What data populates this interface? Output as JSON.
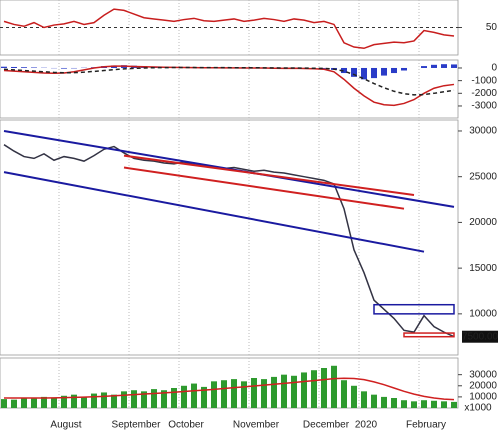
{
  "chart_data": [
    {
      "type": "line",
      "ylim": [
        5,
        95
      ],
      "yticks": [
        50
      ],
      "reference": 50,
      "series": [
        {
          "kind": "line",
          "color": "#c81e1e",
          "values": [
            60,
            55,
            52,
            58,
            50,
            54,
            56,
            60,
            55,
            58,
            70,
            80,
            78,
            72,
            66,
            64,
            62,
            60,
            63,
            65,
            61,
            60,
            62,
            64,
            60,
            62,
            65,
            63,
            60,
            64,
            62,
            58,
            60,
            55,
            25,
            18,
            16,
            22,
            24,
            26,
            25,
            28,
            45,
            42,
            38,
            36
          ]
        }
      ]
    },
    {
      "type": "bar",
      "ylim": [
        -3950,
        630
      ],
      "yticks": [
        0,
        -1000,
        -2000,
        -3000
      ],
      "series": [
        {
          "kind": "bar",
          "color": "#2a3cc8",
          "values": [
            100,
            80,
            60,
            40,
            20,
            -20,
            -50,
            -30,
            20,
            60,
            150,
            200,
            220,
            180,
            150,
            120,
            100,
            80,
            60,
            50,
            40,
            30,
            30,
            40,
            30,
            20,
            30,
            20,
            10,
            20,
            10,
            0,
            -50,
            -150,
            -400,
            -700,
            -900,
            -800,
            -600,
            -400,
            -200,
            0,
            150,
            250,
            300,
            280
          ]
        },
        {
          "kind": "line",
          "color": "#c81e1e",
          "values": [
            -200,
            -250,
            -300,
            -350,
            -400,
            -420,
            -400,
            -300,
            -150,
            0,
            100,
            150,
            150,
            120,
            100,
            80,
            60,
            50,
            40,
            30,
            20,
            20,
            10,
            10,
            0,
            0,
            0,
            -20,
            -30,
            -20,
            -40,
            -60,
            -100,
            -300,
            -900,
            -1600,
            -2200,
            -2700,
            -2900,
            -2950,
            -2800,
            -2500,
            -2000,
            -1600,
            -1400,
            -1300
          ]
        },
        {
          "kind": "dashed",
          "color": "#222222",
          "values": [
            -100,
            -150,
            -200,
            -250,
            -300,
            -350,
            -380,
            -370,
            -330,
            -270,
            -200,
            -130,
            -70,
            -30,
            0,
            20,
            30,
            35,
            35,
            33,
            30,
            28,
            25,
            22,
            18,
            15,
            12,
            6,
            0,
            -4,
            -10,
            -20,
            -36,
            -88,
            -250,
            -520,
            -860,
            -1230,
            -1560,
            -1840,
            -2030,
            -2120,
            -2100,
            -2000,
            -1880,
            -1760
          ]
        }
      ]
    },
    {
      "type": "line",
      "ylim": [
        5500,
        31200
      ],
      "yticks": [
        10000,
        15000,
        20000,
        25000,
        30000
      ],
      "series": [
        {
          "kind": "line",
          "color": "#333344",
          "values": [
            28500,
            27800,
            27200,
            27000,
            27500,
            26800,
            27200,
            27000,
            26700,
            27300,
            28000,
            28300,
            27600,
            27000,
            26800,
            26700,
            26500,
            26400,
            26600,
            26300,
            26200,
            26000,
            25900,
            26000,
            25800,
            25600,
            25700,
            25500,
            25400,
            25200,
            25000,
            24800,
            24600,
            24200,
            21500,
            17000,
            14500,
            11500,
            10500,
            9500,
            8200,
            8000,
            9800,
            8600,
            8000,
            7500
          ]
        }
      ],
      "trendlines": [
        {
          "color": "#1a1aa0",
          "start": [
            0,
            30000
          ],
          "end": [
            45,
            21700
          ]
        },
        {
          "color": "#1a1aa0",
          "start": [
            0,
            25500
          ],
          "end": [
            42,
            16800
          ]
        },
        {
          "color": "#d02020",
          "start": [
            12,
            27300
          ],
          "end": [
            41,
            23000
          ]
        },
        {
          "color": "#d02020",
          "start": [
            12,
            26000
          ],
          "end": [
            40,
            21500
          ]
        }
      ],
      "zones": [
        {
          "color": "#1a1aa0",
          "x": [
            37,
            45
          ],
          "y": [
            10000,
            11000
          ]
        },
        {
          "color": "#d02020",
          "x": [
            40,
            45
          ],
          "y": [
            7500,
            7900
          ]
        }
      ],
      "last_label": {
        "value": 7500,
        "label": "7500.00"
      }
    },
    {
      "type": "bar",
      "ylim": [
        0,
        45000
      ],
      "yticks": [
        10000,
        20000,
        30000
      ],
      "unit_label": "x1000",
      "categories": [
        null,
        null,
        null,
        null,
        null,
        null,
        "August",
        null,
        null,
        null,
        null,
        null,
        null,
        "September",
        null,
        null,
        null,
        null,
        "October",
        null,
        null,
        null,
        null,
        null,
        null,
        "November",
        null,
        null,
        null,
        null,
        null,
        null,
        "December",
        null,
        null,
        null,
        "2020",
        null,
        null,
        null,
        null,
        null,
        "February",
        null,
        null,
        null
      ],
      "series": [
        {
          "kind": "bar",
          "color": "#2e9a2e",
          "values": [
            8000,
            7500,
            9000,
            8500,
            10000,
            9000,
            11000,
            12000,
            10000,
            13000,
            14000,
            12000,
            15000,
            16000,
            15000,
            17000,
            16000,
            18000,
            20000,
            22000,
            19000,
            24000,
            25000,
            26000,
            24000,
            27000,
            26000,
            28000,
            30000,
            29000,
            32000,
            34000,
            36000,
            38000,
            25000,
            20000,
            15000,
            12000,
            10000,
            9000,
            7000,
            6000,
            7000,
            6500,
            6000,
            5500
          ]
        },
        {
          "kind": "line",
          "color": "#d02020",
          "values": [
            9000,
            9000,
            9000,
            9000,
            9000,
            9100,
            9300,
            9600,
            9800,
            10100,
            10500,
            11000,
            11500,
            12000,
            12600,
            13100,
            13600,
            14200,
            14800,
            15500,
            16100,
            16800,
            17500,
            18300,
            19000,
            19800,
            20600,
            21400,
            22200,
            23000,
            23800,
            24600,
            25500,
            26400,
            26800,
            26500,
            25500,
            23500,
            21000,
            18000,
            15000,
            12500,
            10500,
            9000,
            8000,
            7500
          ]
        }
      ]
    }
  ]
}
